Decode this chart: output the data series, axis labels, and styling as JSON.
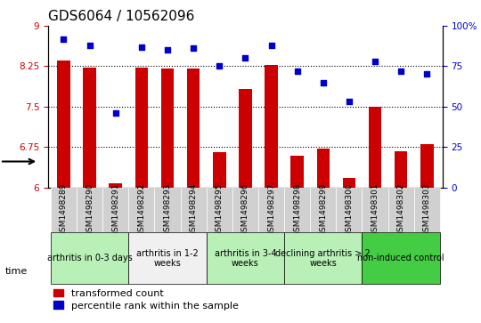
{
  "title": "GDS6064 / 10562096",
  "samples": [
    "GSM1498289",
    "GSM1498290",
    "GSM1498291",
    "GSM1498292",
    "GSM1498293",
    "GSM1498294",
    "GSM1498295",
    "GSM1498296",
    "GSM1498297",
    "GSM1498298",
    "GSM1498299",
    "GSM1498300",
    "GSM1498301",
    "GSM1498302",
    "GSM1498303"
  ],
  "bar_values": [
    8.35,
    8.22,
    6.08,
    8.22,
    8.21,
    8.21,
    6.65,
    7.82,
    8.27,
    6.58,
    6.72,
    6.18,
    7.5,
    6.67,
    6.8
  ],
  "dot_values": [
    92,
    88,
    46,
    87,
    85,
    86,
    75,
    80,
    88,
    72,
    65,
    53,
    78,
    72,
    70
  ],
  "ylim_left": [
    6,
    9
  ],
  "ylim_right": [
    0,
    100
  ],
  "yticks_left": [
    6,
    6.75,
    7.5,
    8.25,
    9
  ],
  "ytick_labels_left": [
    "6",
    "6.75",
    "7.5",
    "8.25",
    "9"
  ],
  "yticks_right": [
    0,
    25,
    50,
    75,
    100
  ],
  "ytick_labels_right": [
    "0",
    "25",
    "50",
    "75",
    "100%"
  ],
  "bar_color": "#cc0000",
  "dot_color": "#0000cc",
  "dotted_lines": [
    6.75,
    7.5,
    8.25
  ],
  "groups": [
    {
      "label": "arthritis in 0-3 days",
      "start": 0,
      "end": 3,
      "color": "#ccffcc"
    },
    {
      "label": "arthritis in 1-2\nweeks",
      "start": 3,
      "end": 6,
      "color": "#ffffff"
    },
    {
      "label": "arthritis in 3-4\nweeks",
      "start": 6,
      "end": 9,
      "color": "#ccffcc"
    },
    {
      "label": "declining arthritis > 2\nweeks",
      "start": 9,
      "end": 12,
      "color": "#ccffcc"
    },
    {
      "label": "non-induced control",
      "start": 12,
      "end": 15,
      "color": "#33cc33"
    }
  ],
  "time_label": "time",
  "xlabel_color": "#000000",
  "bar_tick_color": "#cc0000",
  "right_axis_color": "#0000cc",
  "title_fontsize": 11,
  "tick_fontsize": 7.5,
  "legend_fontsize": 8,
  "group_fontsize": 7,
  "sample_fontsize": 6.5
}
